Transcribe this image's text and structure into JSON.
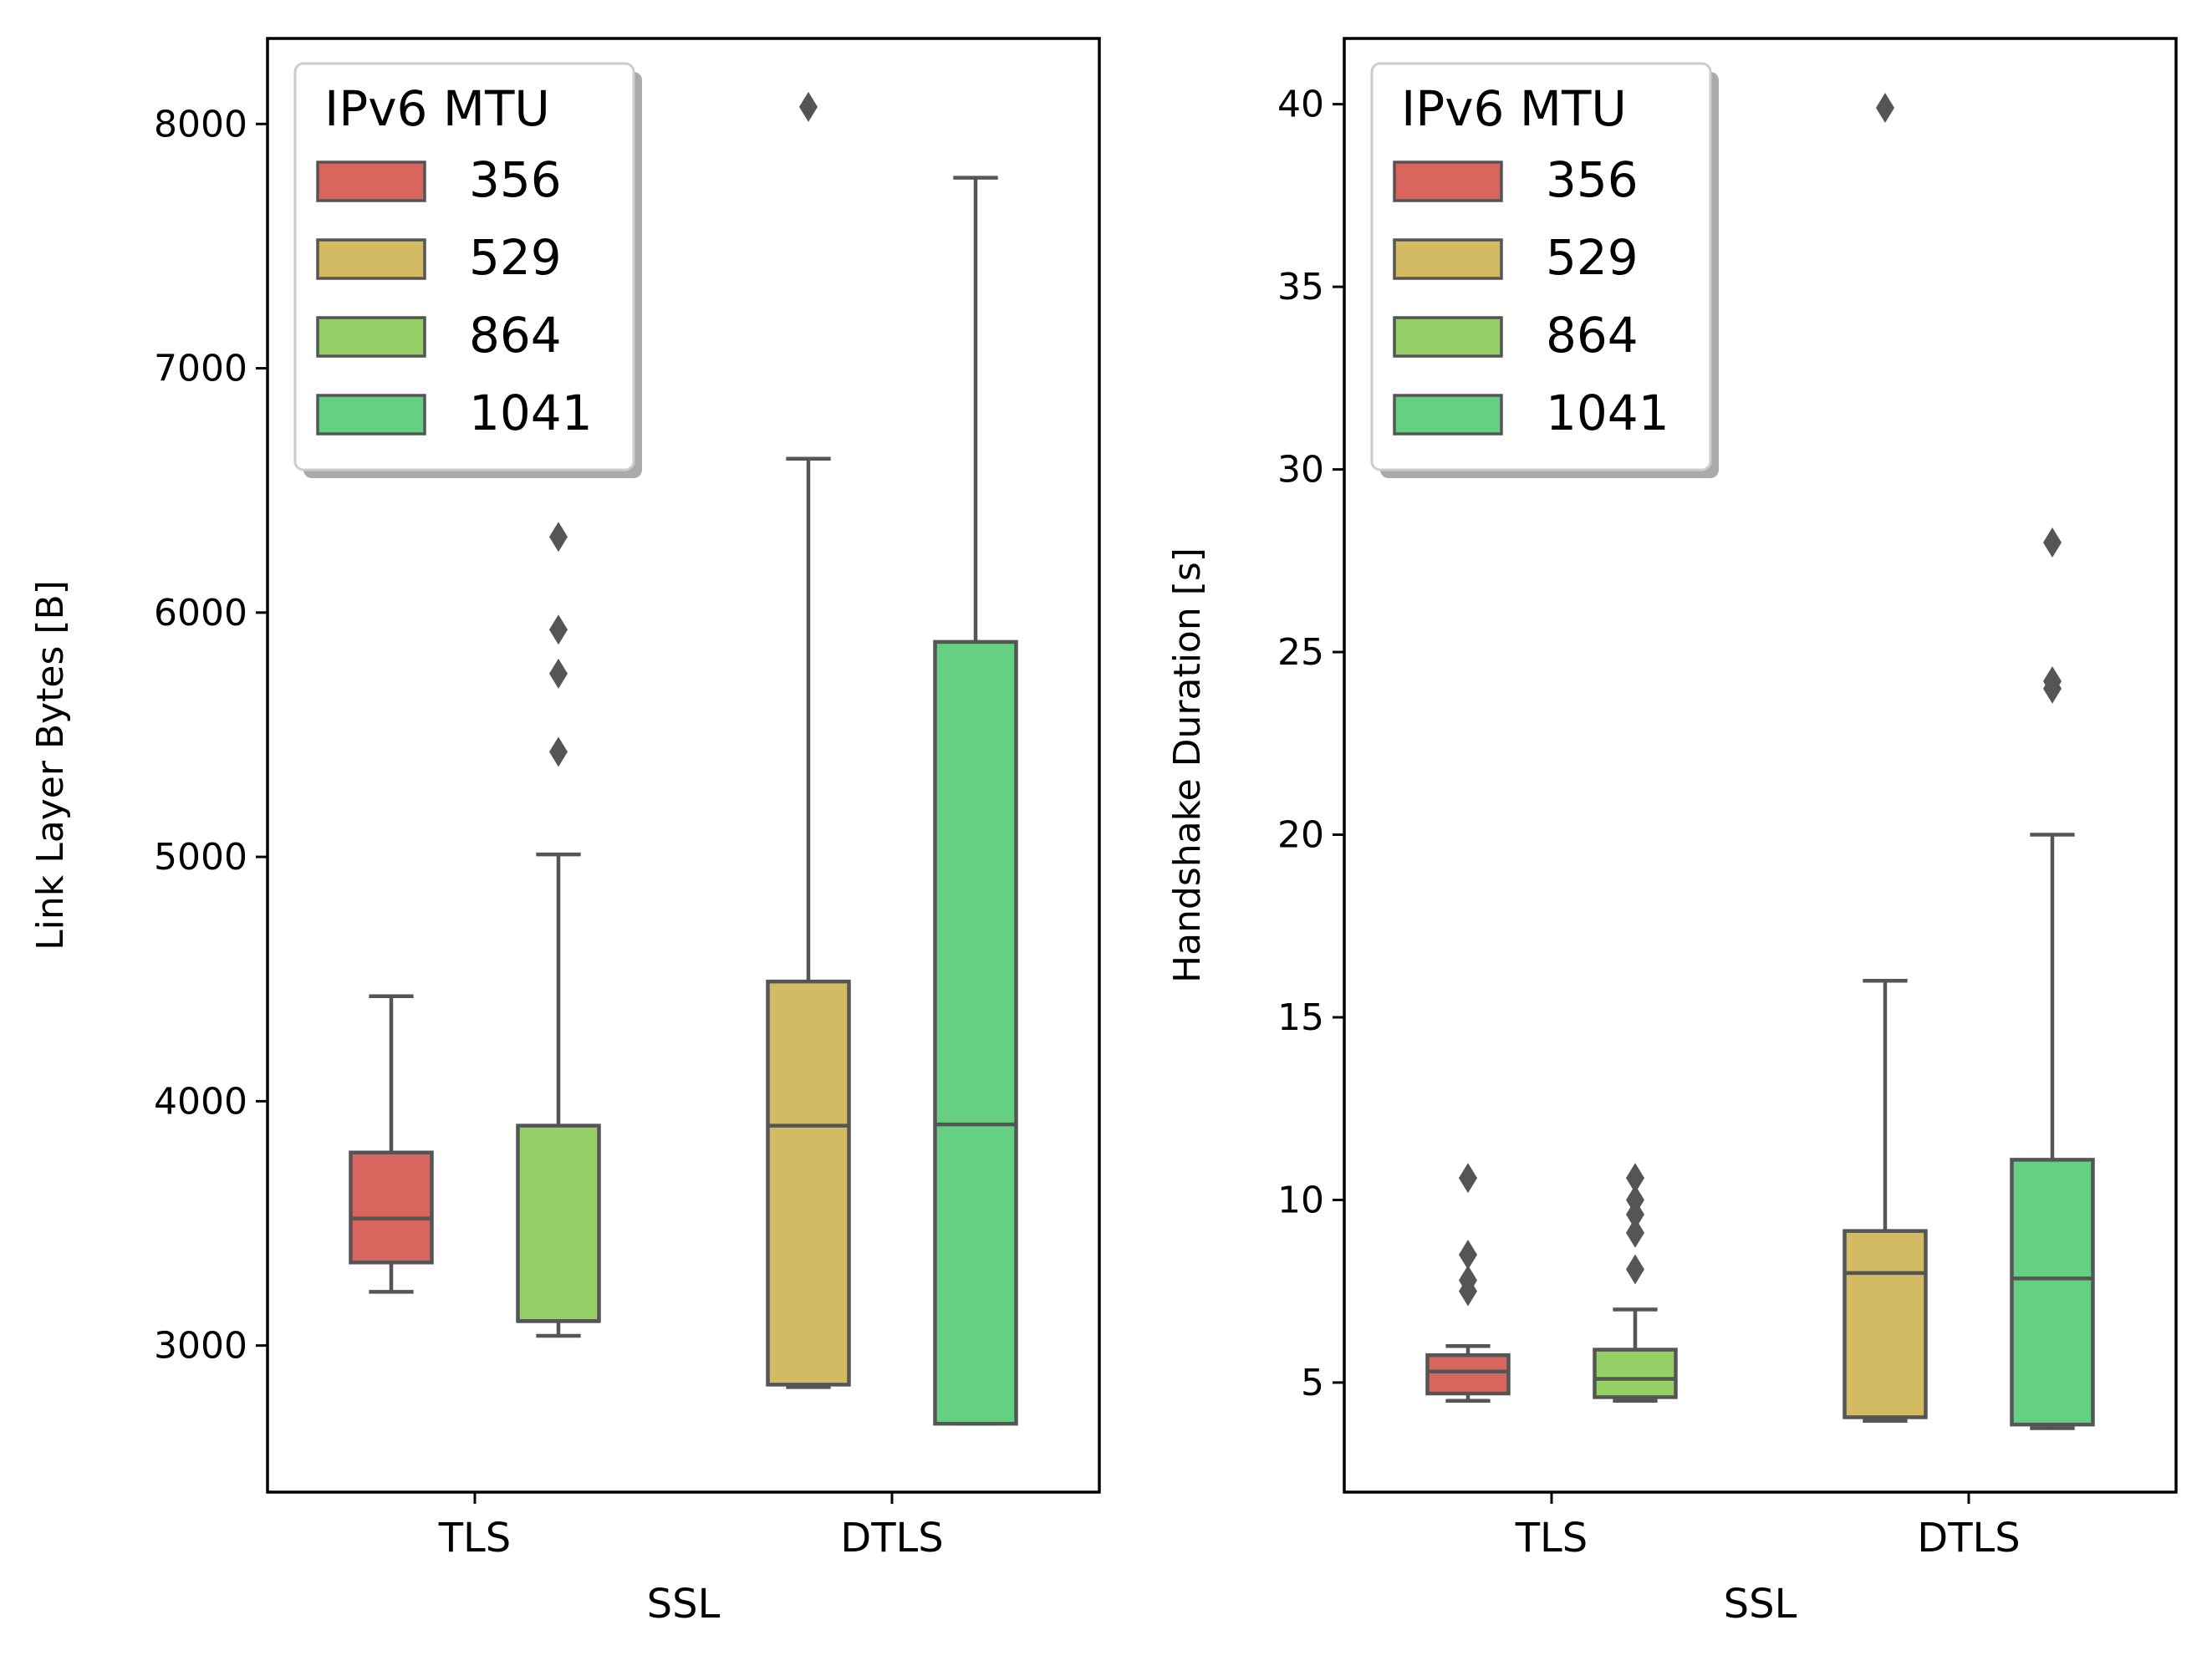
{
  "chart_data": [
    {
      "type": "box",
      "xlabel": "SSL",
      "ylabel": "Link Layer Bytes [B]",
      "categories": [
        "TLS",
        "DTLS"
      ],
      "ylim": [
        2400,
        8350
      ],
      "yticks": [
        3000,
        4000,
        5000,
        6000,
        7000,
        8000
      ],
      "legend": {
        "title": "IPv6 MTU",
        "position": "top-left",
        "entries": [
          {
            "label": "356",
            "color": "#d9665e"
          },
          {
            "label": "529",
            "color": "#d2bb62"
          },
          {
            "label": "864",
            "color": "#95d066"
          },
          {
            "label": "1041",
            "color": "#66d082"
          }
        ]
      },
      "boxes": [
        {
          "category": "TLS",
          "series": "356",
          "color": "#d9665e",
          "whisker_low": 3220,
          "q1": 3340,
          "median": 3520,
          "q3": 3790,
          "whisker_high": 4430,
          "outliers": []
        },
        {
          "category": "TLS",
          "series": "864",
          "color": "#95d066",
          "whisker_low": 3040,
          "q1": 3100,
          "median": 3100,
          "q3": 3900,
          "whisker_high": 5010,
          "outliers": [
            5430,
            5750,
            5930,
            6310
          ]
        },
        {
          "category": "DTLS",
          "series": "529",
          "color": "#d2bb62",
          "whisker_low": 2830,
          "q1": 2840,
          "median": 3900,
          "q3": 4490,
          "whisker_high": 6630,
          "outliers": [
            8070
          ]
        },
        {
          "category": "DTLS",
          "series": "1041",
          "color": "#66d082",
          "whisker_low": 2680,
          "q1": 2680,
          "median": 3905,
          "q3": 5880,
          "whisker_high": 7780,
          "outliers": []
        }
      ]
    },
    {
      "type": "box",
      "xlabel": "SSL",
      "ylabel": "Handshake Duration [s]",
      "categories": [
        "TLS",
        "DTLS"
      ],
      "ylim": [
        2.0,
        41.8
      ],
      "yticks": [
        5,
        10,
        15,
        20,
        25,
        30,
        35,
        40
      ],
      "legend": {
        "title": "IPv6 MTU",
        "position": "top-left",
        "entries": [
          {
            "label": "356",
            "color": "#d9665e"
          },
          {
            "label": "529",
            "color": "#d2bb62"
          },
          {
            "label": "864",
            "color": "#95d066"
          },
          {
            "label": "1041",
            "color": "#66d082"
          }
        ]
      },
      "boxes": [
        {
          "category": "TLS",
          "series": "356",
          "color": "#d9665e",
          "whisker_low": 4.5,
          "q1": 4.7,
          "median": 5.3,
          "q3": 5.75,
          "whisker_high": 6.0,
          "outliers": [
            7.5,
            7.8,
            8.5,
            10.6
          ]
        },
        {
          "category": "TLS",
          "series": "864",
          "color": "#95d066",
          "whisker_low": 4.5,
          "q1": 4.6,
          "median": 5.1,
          "q3": 5.9,
          "whisker_high": 7.0,
          "outliers": [
            8.1,
            9.1,
            9.6,
            10.0,
            10.6
          ]
        },
        {
          "category": "DTLS",
          "series": "529",
          "color": "#d2bb62",
          "whisker_low": 3.95,
          "q1": 4.05,
          "median": 8.0,
          "q3": 9.15,
          "whisker_high": 16.0,
          "outliers": [
            39.9
          ]
        },
        {
          "category": "DTLS",
          "series": "1041",
          "color": "#66d082",
          "whisker_low": 3.75,
          "q1": 3.85,
          "median": 7.85,
          "q3": 11.1,
          "whisker_high": 20.0,
          "outliers": [
            24.0,
            24.2,
            28.0
          ]
        }
      ]
    }
  ]
}
